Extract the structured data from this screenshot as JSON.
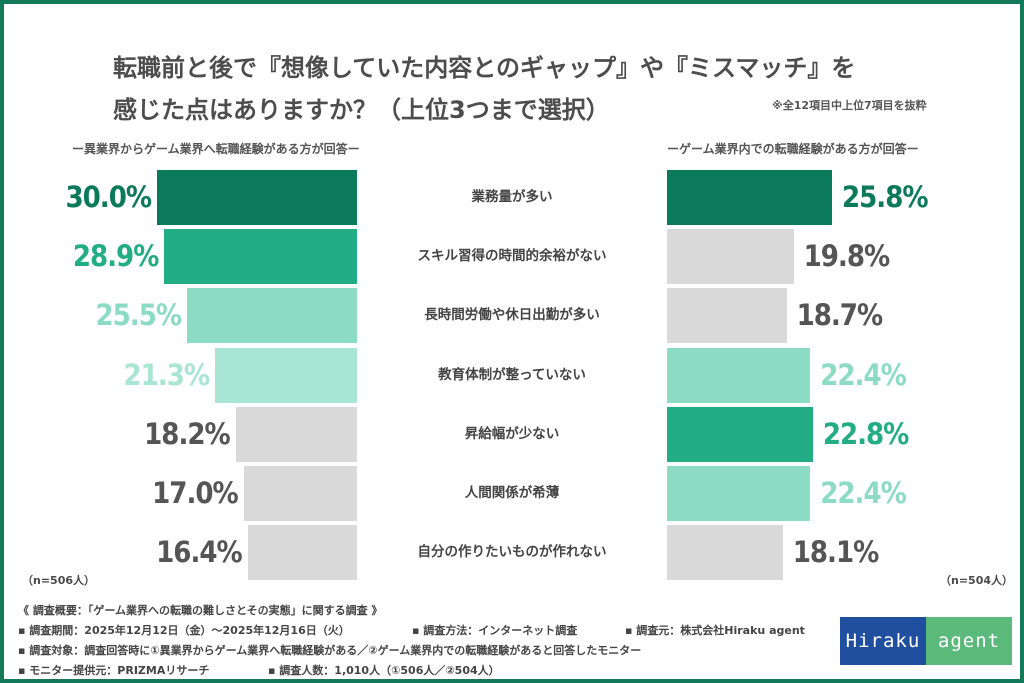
{
  "title_line1": "転職前と後で『想像していた内容とのギャップ』や『ミスマッチ』を",
  "title_line2": "感じた点はありますか？（上位3つまで選択）",
  "note": "※全12項目中上位7項目を抜粋",
  "chart_data": {
    "type": "bar",
    "orientation": "horizontal-butterfly",
    "categories": [
      "業務量が多い",
      "スキル習得の時間的余裕がない",
      "長時間労働や休日出勤が多い",
      "教育体制が整っていない",
      "昇給幅が少ない",
      "人間関係が希薄",
      "自分の作りたいものが作れない"
    ],
    "series": [
      {
        "name": "ー異業界からゲーム業界へ転職経験がある方が回答ー",
        "n_label": "（n=506人）",
        "values": [
          30.0,
          28.9,
          25.5,
          21.3,
          18.2,
          17.0,
          16.4
        ],
        "labels": [
          "30.0%",
          "28.9%",
          "25.5%",
          "21.3%",
          "18.2%",
          "17.0%",
          "16.4%"
        ],
        "colors": [
          "#0b7a5a",
          "#22ad85",
          "#8cdcc4",
          "#a8e6d3",
          "#d9d9d9",
          "#d9d9d9",
          "#d9d9d9"
        ],
        "label_colors": [
          "#0b7a5a",
          "#22ad85",
          "#8cdcc4",
          "#a8e6d3",
          "#555555",
          "#555555",
          "#555555"
        ]
      },
      {
        "name": "ーゲーム業界内での転職経験がある方が回答ー",
        "n_label": "（n=504人）",
        "values": [
          25.8,
          19.8,
          18.7,
          22.4,
          22.8,
          22.4,
          18.1
        ],
        "labels": [
          "25.8%",
          "19.8%",
          "18.7%",
          "22.4%",
          "22.8%",
          "22.4%",
          "18.1%"
        ],
        "colors": [
          "#0b7a5a",
          "#d9d9d9",
          "#d9d9d9",
          "#8cdcc4",
          "#22ad85",
          "#8cdcc4",
          "#d9d9d9"
        ],
        "label_colors": [
          "#0b7a5a",
          "#555555",
          "#555555",
          "#8cdcc4",
          "#22ad85",
          "#8cdcc4",
          "#555555"
        ]
      }
    ]
  },
  "footer": {
    "line1": "《 調査概要：「ゲーム業界への転職の難しさとその実態」に関する調査 》",
    "line2a": "▪ 調査期間：2025年12月12日（金）～2025年12月16日（火）",
    "line2b": "▪ 調査方法：インターネット調査",
    "line2c": "▪ 調査元：株式会社Hiraku agent",
    "line3": "▪ 調査対象：調査回答時に①異業界からゲーム業界へ転職経験がある／②ゲーム業界内での転職経験があると回答したモニター",
    "line4a": "▪ モニター提供元：PRIZMAリサーチ",
    "line4b": "▪ 調査人数：1,010人（①506人／②504人）"
  },
  "logo": {
    "part1": "Hiraku",
    "part2": "agent",
    "color1": "#1f4f9e",
    "color2": "#5cb97c"
  }
}
